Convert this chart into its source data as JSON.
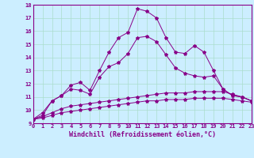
{
  "xlabel": "Windchill (Refroidissement éolien,°C)",
  "background_color": "#cceeff",
  "grid_color": "#aaddcc",
  "line_color": "#880088",
  "x_min": 0,
  "x_max": 23,
  "y_min": 9,
  "y_max": 18,
  "series1": {
    "x": [
      0,
      1,
      2,
      3,
      4,
      5,
      6,
      7,
      8,
      9,
      10,
      11,
      12,
      13,
      14,
      15,
      16,
      17,
      18,
      19,
      20,
      21,
      22,
      23
    ],
    "y": [
      9.3,
      9.8,
      10.7,
      11.1,
      11.9,
      12.1,
      11.5,
      13.0,
      14.4,
      15.5,
      15.9,
      17.7,
      17.5,
      17.0,
      15.5,
      14.4,
      14.3,
      14.9,
      14.4,
      13.0,
      11.6,
      11.1,
      11.0,
      10.7
    ]
  },
  "series2": {
    "x": [
      0,
      1,
      2,
      3,
      4,
      5,
      6,
      7,
      8,
      9,
      10,
      11,
      12,
      13,
      14,
      15,
      16,
      17,
      18,
      19,
      20,
      21,
      22,
      23
    ],
    "y": [
      9.3,
      9.6,
      10.7,
      11.1,
      11.6,
      11.5,
      11.2,
      12.5,
      13.3,
      13.6,
      14.3,
      15.5,
      15.6,
      15.2,
      14.2,
      13.2,
      12.8,
      12.6,
      12.5,
      12.6,
      11.6,
      11.1,
      11.0,
      10.7
    ]
  },
  "series3": {
    "x": [
      0,
      1,
      2,
      3,
      4,
      5,
      6,
      7,
      8,
      9,
      10,
      11,
      12,
      13,
      14,
      15,
      16,
      17,
      18,
      19,
      20,
      21,
      22,
      23
    ],
    "y": [
      9.3,
      9.5,
      9.8,
      10.1,
      10.3,
      10.4,
      10.5,
      10.6,
      10.7,
      10.8,
      10.9,
      11.0,
      11.1,
      11.2,
      11.3,
      11.3,
      11.3,
      11.4,
      11.4,
      11.4,
      11.4,
      11.2,
      11.0,
      10.7
    ]
  },
  "series4": {
    "x": [
      0,
      1,
      2,
      3,
      4,
      5,
      6,
      7,
      8,
      9,
      10,
      11,
      12,
      13,
      14,
      15,
      16,
      17,
      18,
      19,
      20,
      21,
      22,
      23
    ],
    "y": [
      9.3,
      9.4,
      9.6,
      9.8,
      9.9,
      10.0,
      10.1,
      10.2,
      10.3,
      10.4,
      10.5,
      10.6,
      10.7,
      10.7,
      10.8,
      10.8,
      10.8,
      10.9,
      10.9,
      10.9,
      10.9,
      10.8,
      10.7,
      10.6
    ]
  }
}
